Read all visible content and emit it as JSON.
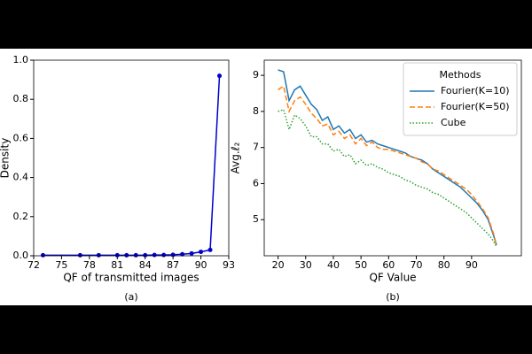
{
  "chart_data": [
    {
      "type": "line",
      "caption": "(a)",
      "x_label": "QF of transmitted images",
      "y_label": "Density",
      "x": [
        73,
        77,
        79,
        81,
        82,
        83,
        84,
        85,
        86,
        87,
        88,
        89,
        90,
        91,
        92
      ],
      "series": [
        {
          "name": "Density",
          "color": "#0000cc",
          "linestyle": "solid",
          "marker": "o",
          "values": [
            0.003,
            0.003,
            0.003,
            0.003,
            0.003,
            0.003,
            0.003,
            0.004,
            0.004,
            0.005,
            0.008,
            0.012,
            0.02,
            0.03,
            0.92
          ]
        }
      ],
      "xlim": [
        72,
        93
      ],
      "xticks": [
        72,
        75,
        78,
        81,
        84,
        87,
        90,
        93
      ],
      "ylim": [
        0,
        1
      ],
      "yticks": [
        {
          "value": 0,
          "label": "0.0"
        },
        {
          "value": 0.2,
          "label": "0.2"
        },
        {
          "value": 0.4,
          "label": "0.4"
        },
        {
          "value": 0.6,
          "label": "0.6"
        },
        {
          "value": 0.8,
          "label": "0.8"
        },
        {
          "value": 1,
          "label": "1.0"
        }
      ],
      "legend": false
    },
    {
      "type": "line",
      "caption": "(b)",
      "x_label": "QF Value",
      "y_label": "Avg.ℓ₂",
      "legend_title": "Methods",
      "legend": "upper right",
      "x": [
        20,
        22,
        24,
        26,
        28,
        30,
        32,
        34,
        36,
        38,
        40,
        42,
        44,
        46,
        48,
        50,
        52,
        54,
        56,
        58,
        60,
        62,
        64,
        66,
        68,
        70,
        72,
        74,
        76,
        78,
        80,
        82,
        84,
        86,
        88,
        90,
        92,
        94,
        96,
        98,
        99
      ],
      "series": [
        {
          "name": "Fourier(K=10)",
          "color": "#1f77b4",
          "linestyle": "solid",
          "values": [
            9.15,
            9.1,
            8.3,
            8.6,
            8.7,
            8.45,
            8.2,
            8.05,
            7.75,
            7.85,
            7.5,
            7.6,
            7.4,
            7.5,
            7.25,
            7.35,
            7.15,
            7.2,
            7.1,
            7.05,
            7.0,
            6.95,
            6.9,
            6.85,
            6.75,
            6.7,
            6.65,
            6.55,
            6.4,
            6.3,
            6.2,
            6.1,
            6.0,
            5.9,
            5.75,
            5.6,
            5.45,
            5.25,
            5.0,
            4.55,
            4.3
          ]
        },
        {
          "name": "Fourier(K=50)",
          "color": "#ff7f0e",
          "linestyle": "dashed",
          "values": [
            8.6,
            8.7,
            8.0,
            8.3,
            8.4,
            8.2,
            7.95,
            7.8,
            7.6,
            7.65,
            7.35,
            7.45,
            7.25,
            7.35,
            7.1,
            7.25,
            7.05,
            7.15,
            7.0,
            6.95,
            6.95,
            6.9,
            6.85,
            6.8,
            6.75,
            6.7,
            6.6,
            6.55,
            6.4,
            6.35,
            6.25,
            6.15,
            6.05,
            5.95,
            5.85,
            5.7,
            5.5,
            5.3,
            5.05,
            4.6,
            4.3
          ]
        },
        {
          "name": "Cube",
          "color": "#2ca02c",
          "linestyle": "dotted",
          "values": [
            8.0,
            8.05,
            7.5,
            7.9,
            7.8,
            7.6,
            7.3,
            7.3,
            7.1,
            7.1,
            6.9,
            6.95,
            6.75,
            6.8,
            6.55,
            6.65,
            6.5,
            6.55,
            6.45,
            6.4,
            6.3,
            6.25,
            6.2,
            6.1,
            6.05,
            5.95,
            5.9,
            5.85,
            5.75,
            5.7,
            5.6,
            5.5,
            5.4,
            5.3,
            5.2,
            5.05,
            4.9,
            4.75,
            4.6,
            4.4,
            4.25
          ]
        }
      ],
      "xlim": [
        15,
        108
      ],
      "xticks": [
        20,
        30,
        40,
        50,
        60,
        70,
        80,
        90
      ],
      "ylim": [
        4.0,
        9.42
      ],
      "yticks": [
        5,
        6,
        7,
        8,
        9
      ]
    }
  ]
}
